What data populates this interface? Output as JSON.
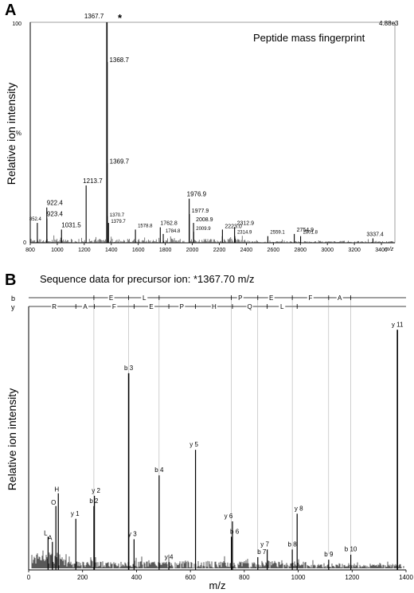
{
  "chart_data": [
    {
      "type": "bar",
      "panel_label": "A",
      "title": "Peptide mass fingerprint",
      "ylabel": "Relative ion intensity",
      "xlabel": "m/z",
      "y_axis_label_short": "%",
      "y_top_tick": "100",
      "y_bottom_tick": "0",
      "intensity_scale": "4.88e3",
      "precursor_marker": "*",
      "xlim": [
        800,
        3500
      ],
      "ylim": [
        0,
        100
      ],
      "x_ticks": [
        800,
        1000,
        1200,
        1400,
        1600,
        1800,
        2000,
        2200,
        2400,
        2600,
        2800,
        3000,
        3200,
        3400
      ],
      "peaks": [
        {
          "mz": 852.4,
          "label": "852.4",
          "intensity": 9
        },
        {
          "mz": 922.4,
          "label": "922.4",
          "intensity": 16
        },
        {
          "mz": 923.4,
          "label": "923.4",
          "intensity": 11
        },
        {
          "mz": 1031.5,
          "label": "1031.5",
          "intensity": 6
        },
        {
          "mz": 1213.7,
          "label": "1213.7",
          "intensity": 26
        },
        {
          "mz": 1367.7,
          "label": "1367.7",
          "intensity": 100
        },
        {
          "mz": 1368.7,
          "label": "1368.7",
          "intensity": 82
        },
        {
          "mz": 1369.7,
          "label": "1369.7",
          "intensity": 36
        },
        {
          "mz": 1370.7,
          "label": "1370.7",
          "intensity": 12
        },
        {
          "mz": 1379.7,
          "label": "1379.7",
          "intensity": 9
        },
        {
          "mz": 1578.8,
          "label": "1578.8",
          "intensity": 6
        },
        {
          "mz": 1762.8,
          "label": "1762.8",
          "intensity": 7
        },
        {
          "mz": 1784.8,
          "label": "1784.8",
          "intensity": 4
        },
        {
          "mz": 1976.9,
          "label": "1976.9",
          "intensity": 20
        },
        {
          "mz": 1977.9,
          "label": "1977.9",
          "intensity": 13
        },
        {
          "mz": 2008.9,
          "label": "2008.9",
          "intensity": 9
        },
        {
          "mz": 2009.9,
          "label": "2009.9",
          "intensity": 5
        },
        {
          "mz": 2223.0,
          "label": "2223.0",
          "intensity": 6
        },
        {
          "mz": 2312.9,
          "label": "2312.9",
          "intensity": 7
        },
        {
          "mz": 2314.9,
          "label": "2314.9",
          "intensity": 3
        },
        {
          "mz": 2559.1,
          "label": "2559.1",
          "intensity": 3
        },
        {
          "mz": 2754.9,
          "label": "2754.9",
          "intensity": 4
        },
        {
          "mz": 2801.8,
          "label": "2801.8",
          "intensity": 3
        },
        {
          "mz": 3337.4,
          "label": "3337.4",
          "intensity": 2
        }
      ]
    },
    {
      "type": "bar",
      "panel_label": "B",
      "title": "Sequence data for precursor ion: *1367.70 m/z",
      "ylabel": "Relative ion intensity",
      "xlabel": "m/z",
      "xlim": [
        0,
        1400
      ],
      "ylim": [
        0,
        100
      ],
      "x_ticks": [
        0,
        200,
        400,
        600,
        800,
        1000,
        1200,
        1400
      ],
      "b_series_label": "b",
      "y_series_label": "y",
      "b_sequence": [
        "E",
        "L",
        "P",
        "E",
        "F",
        "A"
      ],
      "y_sequence": [
        "R",
        "A",
        "F",
        "E",
        "P",
        "H",
        "Q",
        "L"
      ],
      "peaks": [
        {
          "mz": 175,
          "label": "y 1",
          "intensity": 20
        },
        {
          "mz": 242,
          "label": "b 2",
          "intensity": 25
        },
        {
          "mz": 244,
          "label": "y 2",
          "intensity": 29
        },
        {
          "mz": 371,
          "label": "b 3",
          "intensity": 77
        },
        {
          "mz": 391,
          "label": "y 3",
          "intensity": 12
        },
        {
          "mz": 484,
          "label": "b 4",
          "intensity": 37
        },
        {
          "mz": 520,
          "label": "y 4",
          "intensity": 3
        },
        {
          "mz": 619,
          "label": "y 5",
          "intensity": 47
        },
        {
          "mz": 752,
          "label": "b 6",
          "intensity": 13
        },
        {
          "mz": 756,
          "label": "y 6",
          "intensity": 19
        },
        {
          "mz": 850,
          "label": "b 7",
          "intensity": 5
        },
        {
          "mz": 885,
          "label": "y 7",
          "intensity": 8
        },
        {
          "mz": 978,
          "label": "b 8",
          "intensity": 8
        },
        {
          "mz": 996,
          "label": "y 8",
          "intensity": 22
        },
        {
          "mz": 1113,
          "label": "b 9",
          "intensity": 4
        },
        {
          "mz": 1195,
          "label": "b 10",
          "intensity": 6
        },
        {
          "mz": 1368,
          "label": "y 11",
          "intensity": 94
        },
        {
          "mz": 72,
          "label": "L",
          "intensity": 13
        },
        {
          "mz": 88,
          "label": "A",
          "intensity": 11
        },
        {
          "mz": 101,
          "label": "O",
          "intensity": 25
        },
        {
          "mz": 110,
          "label": "H",
          "intensity": 30
        }
      ]
    }
  ]
}
